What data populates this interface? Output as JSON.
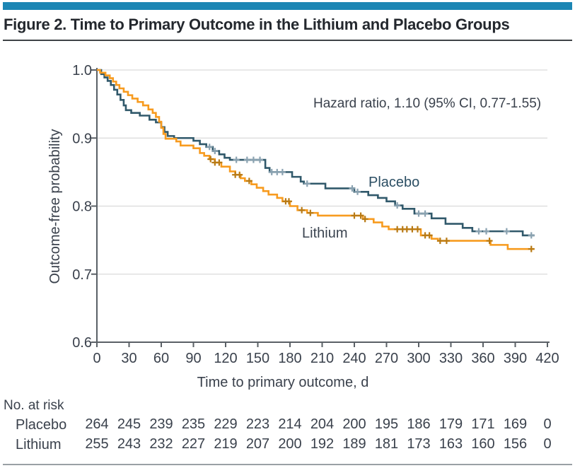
{
  "figure": {
    "title": "Figure 2. Time to Primary Outcome in the Lithium and Placebo Groups",
    "accent_color": "#1c86b4"
  },
  "chart_data": {
    "type": "line",
    "subtype": "kaplan-meier-step-curves",
    "title": "Figure 2. Time to Primary Outcome in the Lithium and Placebo Groups",
    "xlabel": "Time to primary outcome, d",
    "ylabel": "Outcome-free probability",
    "annotation": "Hazard ratio, 1.10 (95% CI, 0.77-1.55)",
    "xlim": [
      0,
      420
    ],
    "ylim": [
      0.6,
      1.0
    ],
    "x_ticks": [
      0,
      30,
      60,
      90,
      120,
      150,
      180,
      210,
      240,
      270,
      300,
      330,
      360,
      390,
      420
    ],
    "y_tick_labels": [
      "1.0",
      "0.9",
      "0.8",
      "0.7",
      "0.6"
    ],
    "grid": "horizontal",
    "legend": "inline-curve-labels",
    "curve_end_day": 408,
    "series": [
      {
        "name": "Placebo",
        "color": "#31596b",
        "censor_color": "#8aa2b1",
        "steps": [
          [
            0,
            1.0
          ],
          [
            4,
            0.994
          ],
          [
            7,
            0.989
          ],
          [
            10,
            0.984
          ],
          [
            13,
            0.978
          ],
          [
            16,
            0.971
          ],
          [
            19,
            0.964
          ],
          [
            22,
            0.956
          ],
          [
            25,
            0.948
          ],
          [
            27,
            0.941
          ],
          [
            32,
            0.937
          ],
          [
            40,
            0.933
          ],
          [
            49,
            0.927
          ],
          [
            55,
            0.923
          ],
          [
            60,
            0.916
          ],
          [
            63,
            0.909
          ],
          [
            66,
            0.903
          ],
          [
            72,
            0.9
          ],
          [
            90,
            0.896
          ],
          [
            96,
            0.891
          ],
          [
            102,
            0.887
          ],
          [
            108,
            0.881
          ],
          [
            114,
            0.876
          ],
          [
            119,
            0.871
          ],
          [
            124,
            0.868
          ],
          [
            157,
            0.856
          ],
          [
            161,
            0.85
          ],
          [
            182,
            0.843
          ],
          [
            190,
            0.836
          ],
          [
            193,
            0.833
          ],
          [
            213,
            0.826
          ],
          [
            240,
            0.821
          ],
          [
            253,
            0.816
          ],
          [
            262,
            0.812
          ],
          [
            270,
            0.807
          ],
          [
            278,
            0.801
          ],
          [
            285,
            0.796
          ],
          [
            296,
            0.789
          ],
          [
            312,
            0.782
          ],
          [
            325,
            0.774
          ],
          [
            341,
            0.768
          ],
          [
            350,
            0.763
          ],
          [
            397,
            0.757
          ]
        ],
        "censor_times": [
          105,
          110,
          130,
          140,
          146,
          152,
          163,
          168,
          173,
          196,
          238,
          243,
          280,
          300,
          306,
          356,
          363,
          382,
          405
        ]
      },
      {
        "name": "Lithium",
        "color": "#f79b1f",
        "censor_color": "#b87a15",
        "steps": [
          [
            0,
            1.0
          ],
          [
            3,
            0.996
          ],
          [
            8,
            0.992
          ],
          [
            12,
            0.988
          ],
          [
            15,
            0.983
          ],
          [
            18,
            0.978
          ],
          [
            21,
            0.973
          ],
          [
            25,
            0.968
          ],
          [
            29,
            0.963
          ],
          [
            33,
            0.958
          ],
          [
            38,
            0.953
          ],
          [
            43,
            0.948
          ],
          [
            48,
            0.942
          ],
          [
            52,
            0.937
          ],
          [
            55,
            0.931
          ],
          [
            58,
            0.924
          ],
          [
            60,
            0.915
          ],
          [
            62,
            0.906
          ],
          [
            64,
            0.899
          ],
          [
            74,
            0.895
          ],
          [
            78,
            0.889
          ],
          [
            90,
            0.885
          ],
          [
            96,
            0.878
          ],
          [
            100,
            0.874
          ],
          [
            105,
            0.869
          ],
          [
            110,
            0.864
          ],
          [
            116,
            0.858
          ],
          [
            124,
            0.851
          ],
          [
            129,
            0.846
          ],
          [
            134,
            0.841
          ],
          [
            138,
            0.837
          ],
          [
            144,
            0.832
          ],
          [
            149,
            0.827
          ],
          [
            155,
            0.822
          ],
          [
            160,
            0.817
          ],
          [
            168,
            0.812
          ],
          [
            173,
            0.807
          ],
          [
            180,
            0.8
          ],
          [
            187,
            0.794
          ],
          [
            196,
            0.79
          ],
          [
            206,
            0.786
          ],
          [
            248,
            0.781
          ],
          [
            258,
            0.776
          ],
          [
            266,
            0.77
          ],
          [
            272,
            0.766
          ],
          [
            302,
            0.757
          ],
          [
            312,
            0.752
          ],
          [
            318,
            0.749
          ],
          [
            367,
            0.743
          ],
          [
            383,
            0.737
          ]
        ],
        "censor_times": [
          106,
          110,
          114,
          129,
          133,
          142,
          176,
          179,
          191,
          199,
          240,
          246,
          250,
          280,
          285,
          289,
          294,
          299,
          306,
          310,
          320,
          326,
          366,
          405
        ]
      }
    ],
    "risk_table": {
      "header": "No. at risk",
      "rows": [
        {
          "label": "Placebo",
          "counts": [
            264,
            245,
            239,
            235,
            229,
            223,
            214,
            204,
            200,
            195,
            186,
            179,
            171,
            169,
            0
          ]
        },
        {
          "label": "Lithium",
          "counts": [
            255,
            243,
            232,
            227,
            219,
            207,
            200,
            192,
            189,
            181,
            173,
            163,
            160,
            156,
            0
          ]
        }
      ]
    }
  }
}
